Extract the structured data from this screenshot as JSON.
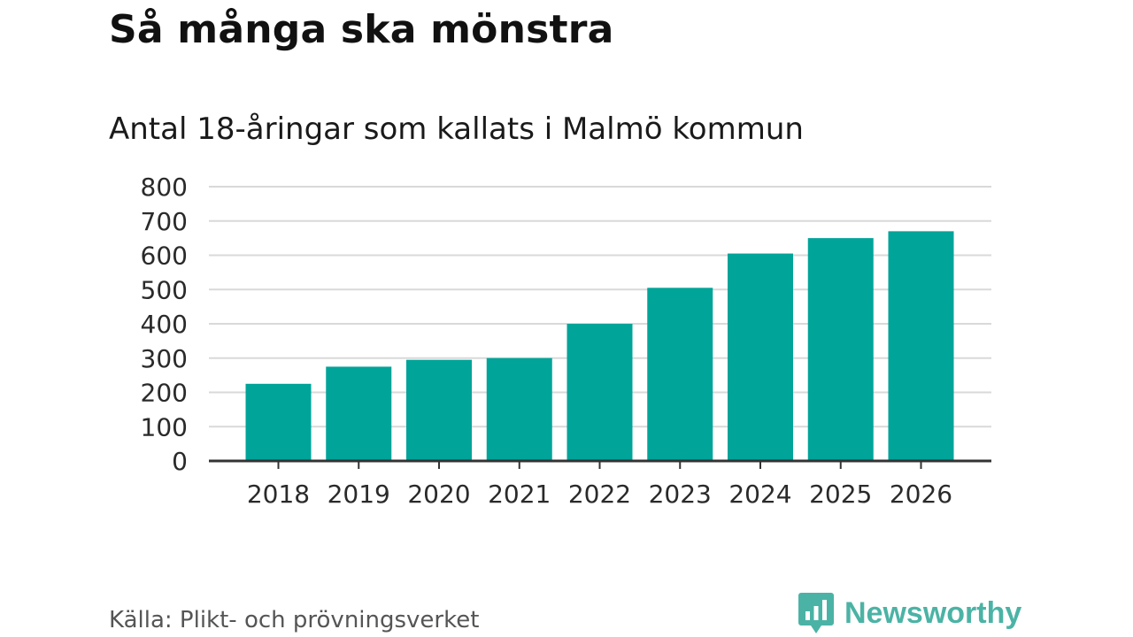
{
  "header": {
    "title": "Så många ska mönstra",
    "subtitle": "Antal 18-åringar som kallats i Malmö kommun"
  },
  "footer": {
    "source": "Källa: Plikt- och prövningsverket",
    "brand": "Newsworthy",
    "brand_icon": "bar-chart-speech-bubble-icon"
  },
  "colors": {
    "bar": "#00a499",
    "grid": "#d9d9d9",
    "axis": "#333333",
    "brand": "#4bb3a5"
  },
  "chart_data": {
    "type": "bar",
    "title": "Så många ska mönstra",
    "subtitle": "Antal 18-åringar som kallats i Malmö kommun",
    "xlabel": "",
    "ylabel": "",
    "categories": [
      "2018",
      "2019",
      "2020",
      "2021",
      "2022",
      "2023",
      "2024",
      "2025",
      "2026"
    ],
    "values": [
      225,
      275,
      295,
      300,
      400,
      505,
      605,
      650,
      670
    ],
    "ylim": [
      0,
      800
    ],
    "yticks": [
      0,
      100,
      200,
      300,
      400,
      500,
      600,
      700,
      800
    ],
    "grid": true,
    "legend": "none"
  }
}
